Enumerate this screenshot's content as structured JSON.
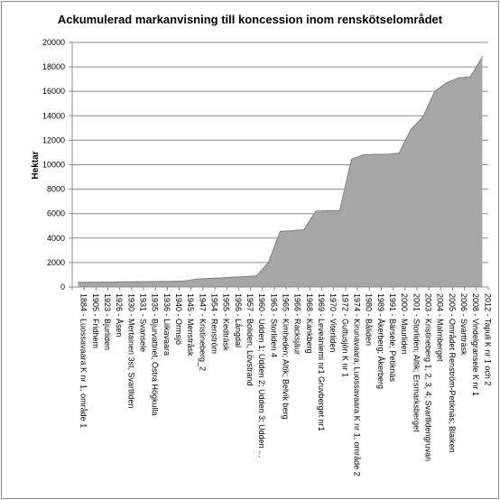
{
  "chart_data": {
    "type": "area",
    "title": "Ackumulerad markanvisning till koncession inom renskötselområdet",
    "xlabel": "",
    "ylabel": "Hektar",
    "ylim": [
      0,
      20000
    ],
    "yticks": [
      0,
      2000,
      4000,
      6000,
      8000,
      10000,
      12000,
      14000,
      16000,
      18000,
      20000
    ],
    "grid": "horizontal",
    "legend": "none",
    "colors": {
      "area_fill": "#a6a6a6",
      "area_line": "#7f7f7f",
      "grid": "#8c8c8c",
      "axis": "#8c8c8c"
    },
    "categories": [
      "1884 - Luossavaara K nr 1, område 1",
      "1905 - Fridhem",
      "1923 - Bjurliden",
      "1926 - Åsen",
      "1930 - Mertainen 3st, Svartliden",
      "1931 - Svansele",
      "1935 - Bjurvattnet, Östra Högkulla",
      "1936 - Liikavaara",
      "1940 - Ormsjö",
      "1945 - Menstråsk",
      "1947 - Kristineberg_2",
      "1954 - Renström",
      "1955 - Kedträsk",
      "1956 - Långdal",
      "1957 - Boliden, Lövstrand",
      "1960 - Udden 1; Udden 2; Udden 3; Udden ...",
      "1963 - Storliden 4",
      "1965 - Kimheden; Altik; Belvik berg",
      "1966 - Racksjäur",
      "1968 - Kankberg",
      "1969 - Leveäniemi nr1 Gruvberget nr1",
      "1970 - Viterliden",
      "1972 - Guttusjön K nr 1",
      "1974 - Kirunavaara; Luossavaara K nr 1, område 2",
      "1980 - Båliden",
      "1989 - Åkerberg; Åkerberg",
      "1991 - Bärsele; Petiknäs",
      "2000 - Maurliden",
      "2001 - Storliden; Altik; Ersmarksberget",
      "2003 - Kristineberg 1, 2, 3, 4; Svartlidengruvan",
      "2004 - Malmberget",
      "2005 - Området Renström-Petiknäs; Blaiken",
      "2006 - Svärtträsk",
      "2008 - Vindelgransele K nr 1",
      "2012 - Tapuli K nr 1 och 2"
    ],
    "values": [
      380,
      390,
      400,
      400,
      420,
      430,
      440,
      450,
      460,
      500,
      650,
      700,
      740,
      800,
      850,
      900,
      2000,
      4550,
      4600,
      4700,
      6200,
      6250,
      6250,
      10450,
      10800,
      10850,
      10850,
      10950,
      12900,
      13900,
      16000,
      16700,
      17100,
      17200,
      18800
    ]
  }
}
